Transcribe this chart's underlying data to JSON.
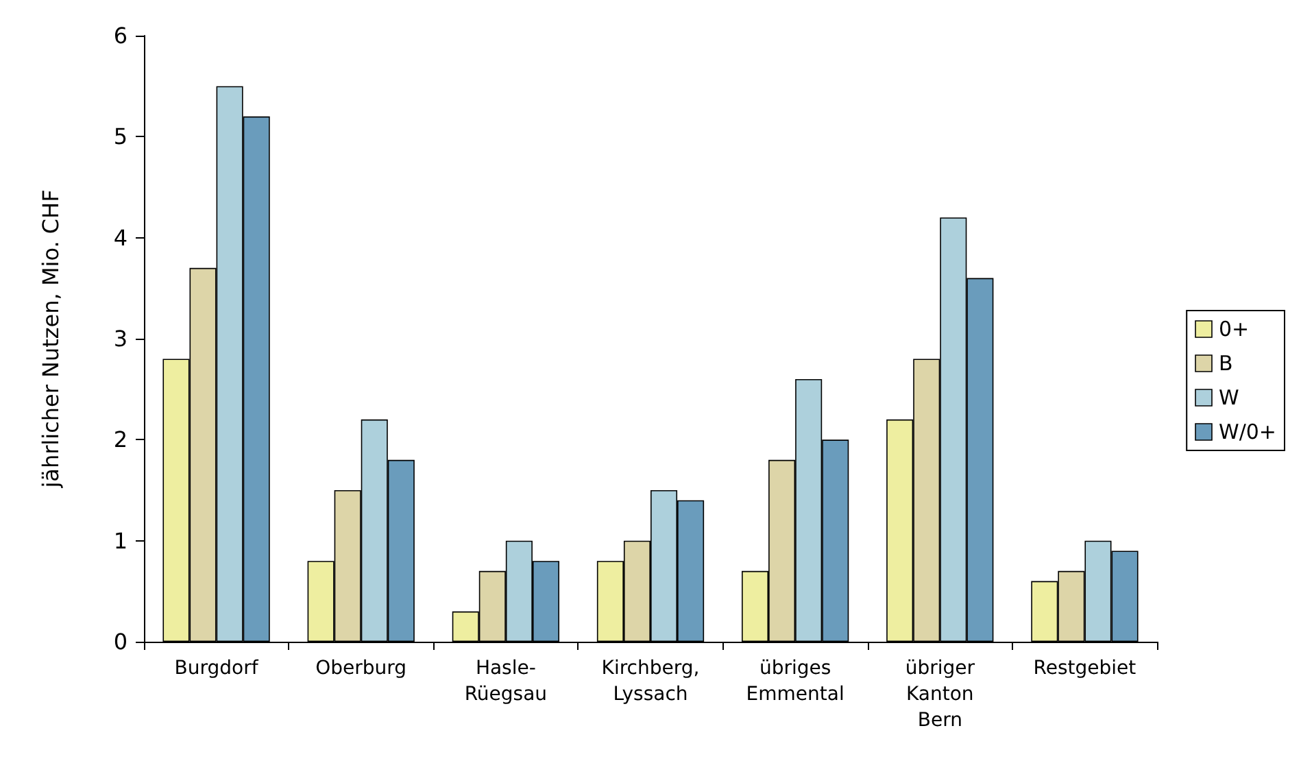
{
  "chart_data": {
    "type": "bar",
    "ylabel": "jährlicher Nutzen, Mio. CHF",
    "categories": [
      "Burgdorf",
      "Oberburg",
      "Hasle-\nRüegsau",
      "Kirchberg,\nLyssach",
      "übriges\nEmmental",
      "übriger\nKanton\nBern",
      "Restgebiet"
    ],
    "series": [
      {
        "name": "0+",
        "color": "#eeeea0",
        "values": [
          2.8,
          0.8,
          0.3,
          0.8,
          0.7,
          2.2,
          0.6
        ]
      },
      {
        "name": "B",
        "color": "#ddd5a8",
        "values": [
          3.7,
          1.5,
          0.7,
          1.0,
          1.8,
          2.8,
          0.7
        ]
      },
      {
        "name": "W",
        "color": "#add0dc",
        "values": [
          5.5,
          2.2,
          1.0,
          1.5,
          2.6,
          4.2,
          1.0
        ]
      },
      {
        "name": "W/0+",
        "color": "#6a9cbc",
        "values": [
          5.2,
          1.8,
          0.8,
          1.4,
          2.0,
          3.6,
          0.9
        ]
      }
    ],
    "ylim": [
      0,
      6
    ],
    "yticks": [
      0,
      1,
      2,
      3,
      4,
      5,
      6
    ],
    "grid": false,
    "legend": "right"
  }
}
